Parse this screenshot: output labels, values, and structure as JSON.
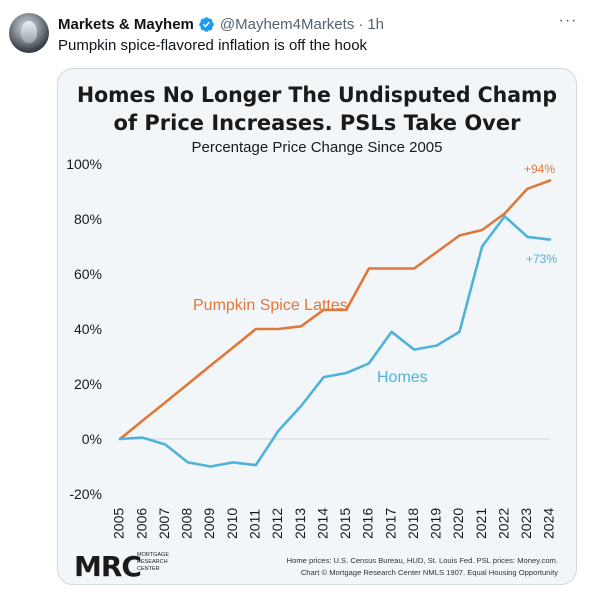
{
  "tweet": {
    "author_name": "Markets & Mayhem",
    "handle": "@Mayhem4Markets",
    "separator": "·",
    "time": "1h",
    "text": "Pumpkin spice-flavored inflation is off the hook",
    "avatar_icon": "robot-avatar-icon",
    "verified_icon": "verified-badge-icon",
    "more_icon": "more-options-icon",
    "more_label": "···",
    "verified_color": "#1d9bf0"
  },
  "chart_data": {
    "type": "line",
    "title_line1": "Homes No Longer The Undisputed Champ",
    "title_line2": "of Price Increases. PSLs Take Over",
    "subtitle": "Percentage Price Change Since 2005",
    "x": [
      2005,
      2006,
      2007,
      2008,
      2009,
      2010,
      2011,
      2012,
      2013,
      2014,
      2015,
      2016,
      2017,
      2018,
      2019,
      2020,
      2021,
      2022,
      2023,
      2024
    ],
    "x_tick_labels": [
      "2005",
      "2006",
      "2007",
      "2008",
      "2009",
      "2010",
      "2011",
      "2012",
      "2013",
      "2014",
      "2015",
      "2016",
      "2017",
      "2018",
      "2019",
      "2020",
      "2021",
      "2022",
      "2023",
      "2024"
    ],
    "ylim": [
      -20,
      100
    ],
    "y_ticks": [
      100,
      80,
      60,
      40,
      20,
      0,
      -20
    ],
    "y_tick_labels": [
      "100%",
      "80%",
      "60%",
      "40%",
      "20%",
      "0%",
      "-20%"
    ],
    "grid": false,
    "zero_line": true,
    "series": [
      {
        "name": "Pumpkin Spice Lattes",
        "color": "#e0783a",
        "values": [
          0,
          6.7,
          13.3,
          20,
          26.7,
          33.3,
          40,
          40,
          41,
          47,
          47,
          62,
          62,
          62,
          68,
          74,
          76,
          82,
          91,
          94
        ]
      },
      {
        "name": "Homes",
        "color": "#4fb3d9",
        "values": [
          0,
          0.5,
          -2,
          -8.5,
          -10,
          -8.5,
          -9.5,
          3,
          12,
          22.5,
          24,
          27.5,
          39,
          32.5,
          34,
          39,
          70,
          81,
          73.5,
          72.5
        ]
      }
    ],
    "annotations": [
      {
        "text": "+94%",
        "series": "Pumpkin Spice Lattes",
        "color": "#e0783a"
      },
      {
        "text": "+73%",
        "series": "Homes",
        "color": "#4fb3d9"
      }
    ],
    "logo": {
      "text": "MRC",
      "subtext_1": "MORTGAGE",
      "subtext_2": "RESEARCH",
      "subtext_3": "CENTER"
    },
    "source_line1": "Home prices: U.S. Census Bureau, HUD, St. Louis Fed. PSL prices:  Money.com.",
    "source_line2": "Chart © Mortgage Research Center NMLS 1907. Equal Housing Opportunity"
  }
}
